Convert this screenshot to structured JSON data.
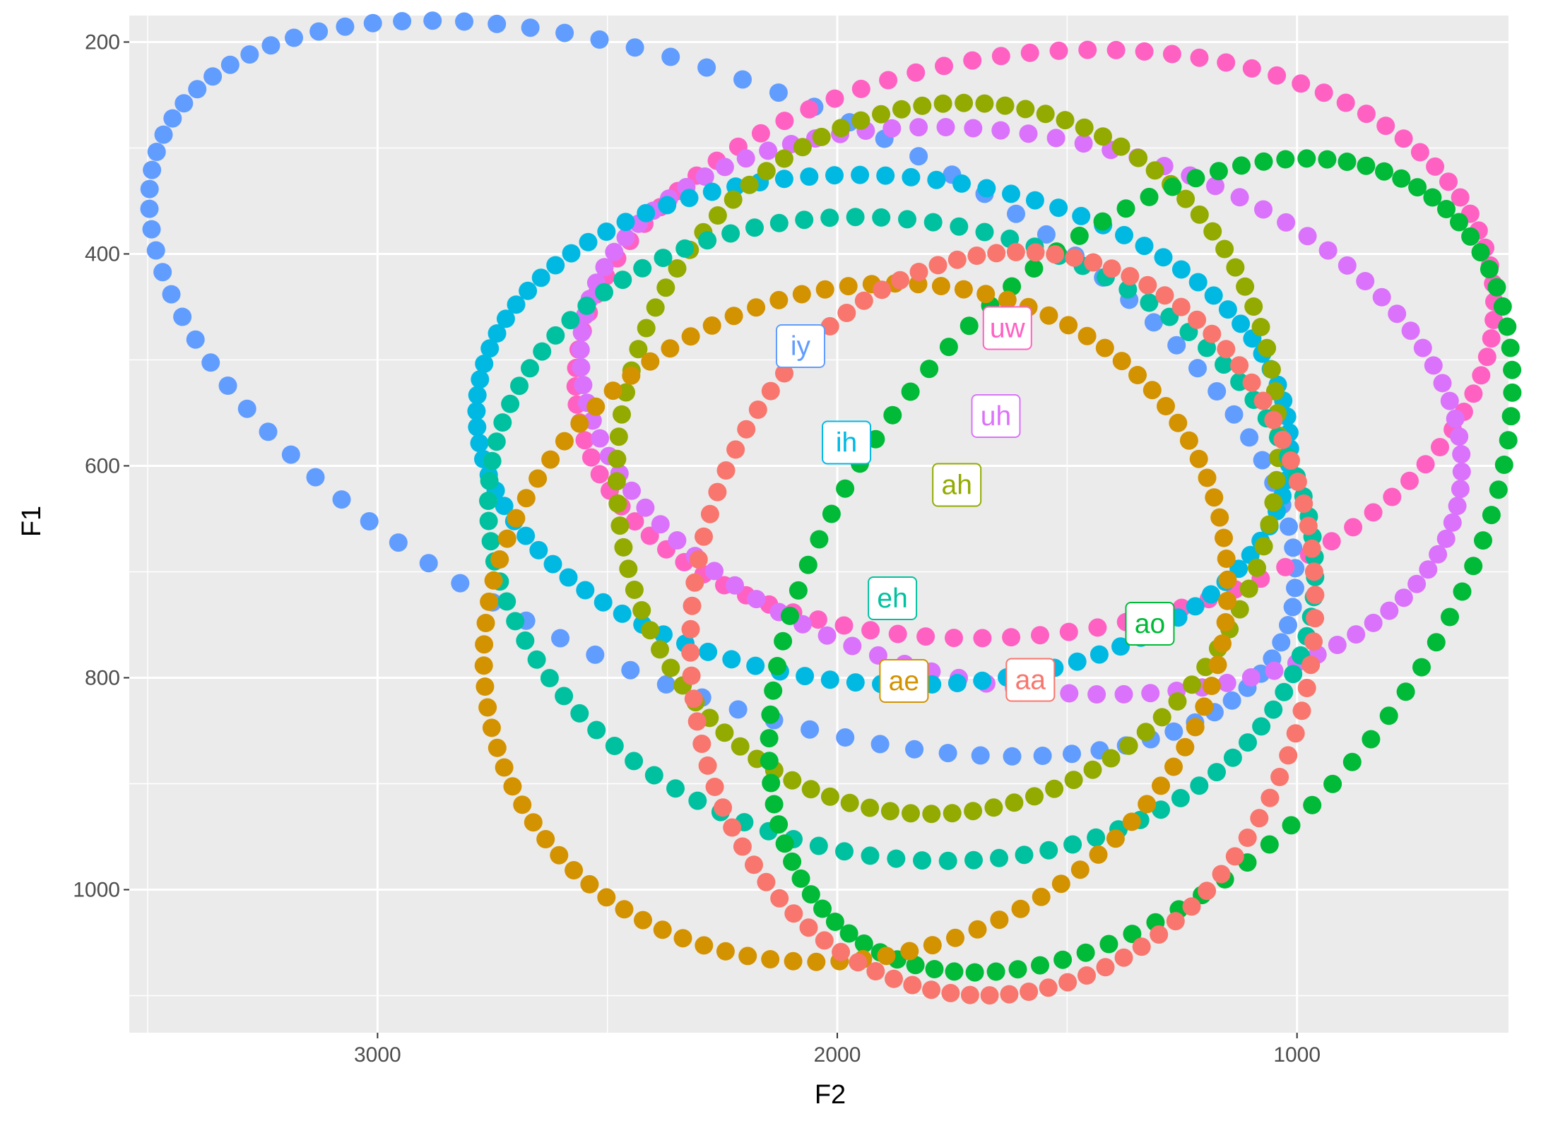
{
  "chart_data": {
    "type": "scatter",
    "title": "",
    "xlabel": "F2",
    "ylabel": "F1",
    "x_reversed": true,
    "y_reversed": true,
    "xlim": [
      3540,
      540
    ],
    "ylim": [
      1135,
      175
    ],
    "x_ticks": [
      3000,
      2000,
      1000
    ],
    "y_ticks": [
      200,
      400,
      600,
      800,
      1000
    ],
    "grid": true,
    "legend": "none",
    "series": [
      {
        "name": "iy",
        "color": "#619CFF",
        "label_x": 2080,
        "label_y": 487,
        "ellipse": {
          "cx": 2250,
          "cy": 527,
          "rx": 1260,
          "ry": 295,
          "rot": -0.15
        }
      },
      {
        "name": "uw",
        "color": "#FF61C3",
        "label_x": 1630,
        "label_y": 470,
        "ellipse": {
          "cx": 1570,
          "cy": 485,
          "rx": 1000,
          "ry": 275,
          "rot": 0.04
        }
      },
      {
        "name": "uh",
        "color": "#DB72FB",
        "label_x": 1655,
        "label_y": 553,
        "ellipse": {
          "cx": 1600,
          "cy": 548,
          "rx": 960,
          "ry": 262,
          "rot": -0.06
        }
      },
      {
        "name": "ih",
        "color": "#00B9E3",
        "label_x": 1980,
        "label_y": 578,
        "ellipse": {
          "cx": 1900,
          "cy": 566,
          "rx": 885,
          "ry": 240,
          "rot": -0.02
        }
      },
      {
        "name": "ah",
        "color": "#93AA00",
        "label_x": 1740,
        "label_y": 618,
        "ellipse": {
          "cx": 1760,
          "cy": 593,
          "rx": 720,
          "ry": 335,
          "rot": 0.03
        }
      },
      {
        "name": "eh",
        "color": "#00C19F",
        "label_x": 1880,
        "label_y": 725,
        "ellipse": {
          "cx": 1860,
          "cy": 669,
          "rx": 900,
          "ry": 302,
          "rot": -0.04
        }
      },
      {
        "name": "ao",
        "color": "#00BA38",
        "label_x": 1320,
        "label_y": 749,
        "ellipse": {
          "cx": 1340,
          "cy": 694,
          "rx": 830,
          "ry": 335,
          "rot": 0.25
        }
      },
      {
        "name": "ae",
        "color": "#D39200",
        "label_x": 1855,
        "label_y": 803,
        "ellipse": {
          "cx": 1960,
          "cy": 748,
          "rx": 810,
          "ry": 318,
          "rot": 0.05
        }
      },
      {
        "name": "aa",
        "color": "#F8766D",
        "label_x": 1580,
        "label_y": 802,
        "ellipse": {
          "cx": 1640,
          "cy": 749,
          "rx": 680,
          "ry": 350,
          "rot": 0.04
        }
      }
    ]
  }
}
